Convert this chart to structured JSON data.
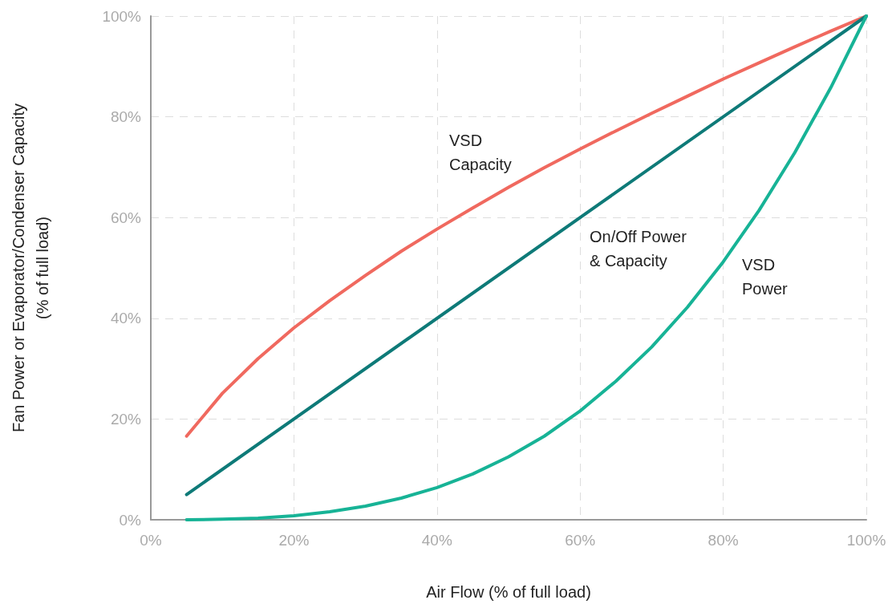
{
  "chart_data": {
    "type": "line",
    "xlabel": "Air Flow (% of full load)",
    "ylabel": "Fan Power or Evaporator/Condenser Capacity\n(% of full load)",
    "x": [
      5,
      10,
      15,
      20,
      25,
      30,
      35,
      40,
      45,
      50,
      55,
      60,
      65,
      70,
      75,
      80,
      85,
      90,
      95,
      100
    ],
    "series": [
      {
        "name": "VSD\nCapacity",
        "color": "#f0695f",
        "values": [
          16.6,
          25.1,
          32.0,
          38.1,
          43.5,
          48.5,
          53.3,
          57.7,
          61.9,
          66.0,
          69.9,
          73.6,
          77.2,
          80.7,
          84.1,
          87.5,
          90.7,
          93.9,
          97.0,
          100
        ]
      },
      {
        "name": "On/Off Power\n& Capacity",
        "color": "#0e7a78",
        "x": [
          5,
          100
        ],
        "values": [
          5,
          100
        ]
      },
      {
        "name": "VSD\nPower",
        "color": "#17b396",
        "values": [
          0,
          0.1,
          0.3,
          0.8,
          1.6,
          2.7,
          4.3,
          6.4,
          9.1,
          12.5,
          16.6,
          21.6,
          27.5,
          34.3,
          42.2,
          51.2,
          61.4,
          72.9,
          85.7,
          100
        ]
      }
    ],
    "xlim": [
      0,
      100
    ],
    "ylim": [
      0,
      100
    ],
    "xticks": [
      {
        "value": 0,
        "label": "0%"
      },
      {
        "value": 20,
        "label": "20%"
      },
      {
        "value": 40,
        "label": "40%"
      },
      {
        "value": 60,
        "label": "60%"
      },
      {
        "value": 80,
        "label": "80%"
      },
      {
        "value": 100,
        "label": "100%"
      }
    ],
    "yticks": [
      {
        "value": 0,
        "label": "0%"
      },
      {
        "value": 20,
        "label": "20%"
      },
      {
        "value": 40,
        "label": "40%"
      },
      {
        "value": 60,
        "label": "60%"
      },
      {
        "value": 80,
        "label": "80%"
      },
      {
        "value": 100,
        "label": "100%"
      }
    ],
    "grid": true,
    "legend": false,
    "marker": "none",
    "line_style": "solid"
  }
}
